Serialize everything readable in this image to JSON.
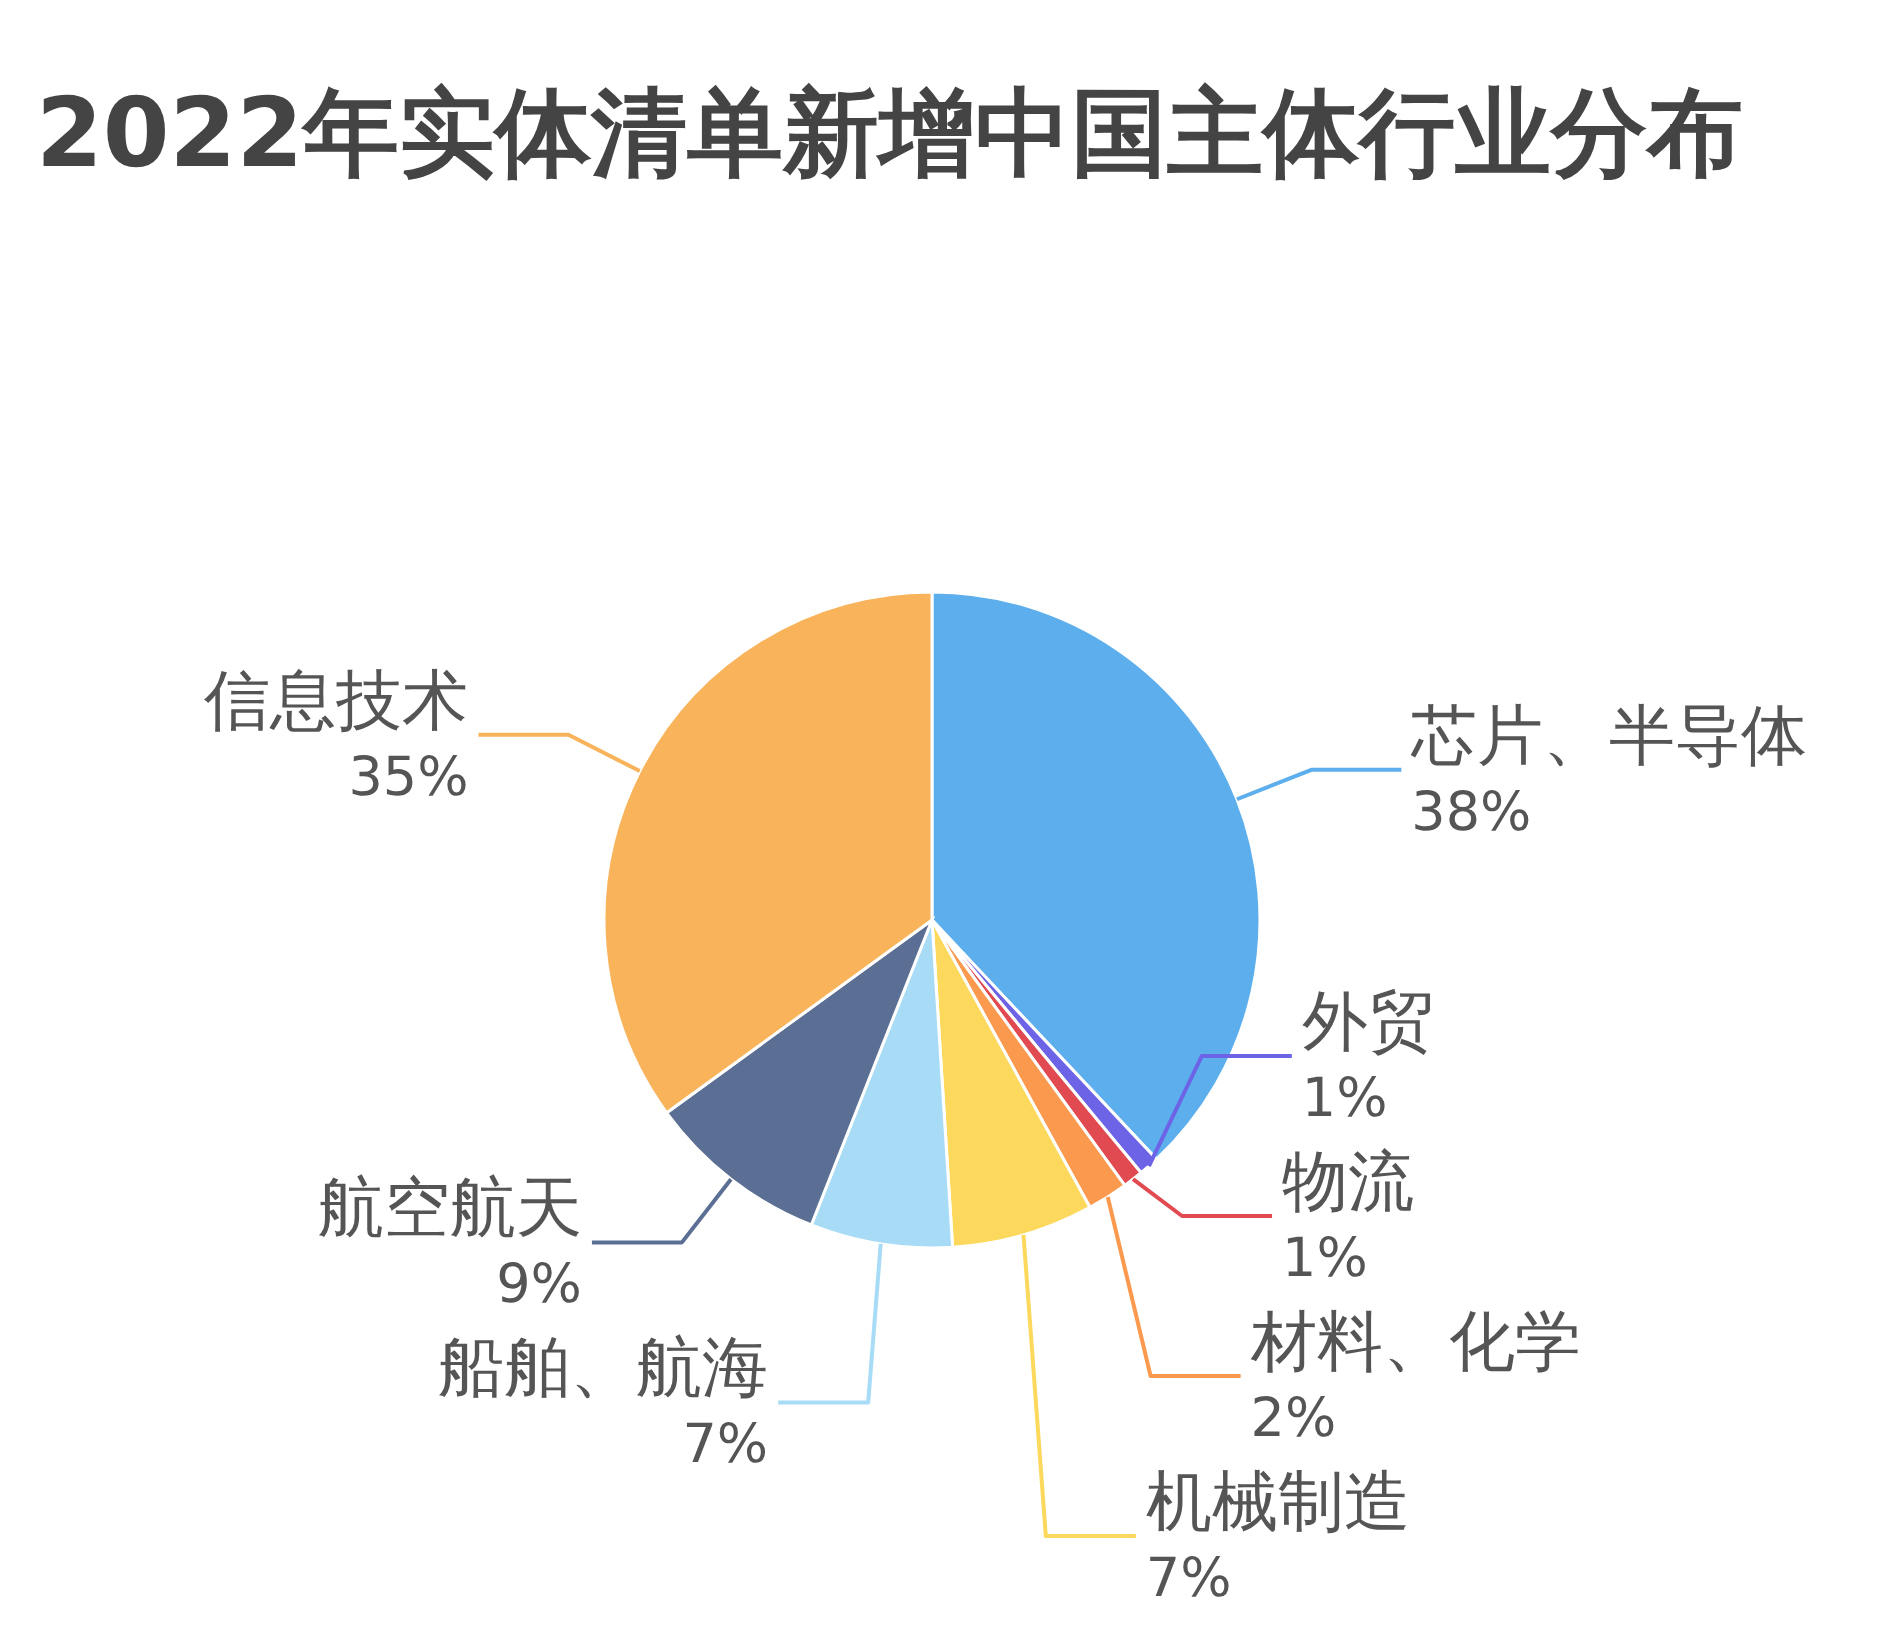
{
  "chart_data": {
    "type": "pie",
    "title": "2022年实体清单新增中国主体行业分布",
    "categories": [
      "芯片、半导体",
      "外贸",
      "物流",
      "材料、化学",
      "机械制造",
      "船舶、航海",
      "航空航天",
      "信息技术"
    ],
    "values": [
      38,
      1,
      1,
      2,
      7,
      7,
      9,
      35
    ],
    "colors": [
      "#5daeec",
      "#6c63e6",
      "#e04a50",
      "#fb9a4e",
      "#fcd95c",
      "#a8dcf6",
      "#5b6e94",
      "#f9b35b"
    ],
    "value_labels": [
      "38%",
      "1%",
      "1%",
      "2%",
      "7%",
      "7%",
      "9%",
      "35%"
    ]
  }
}
